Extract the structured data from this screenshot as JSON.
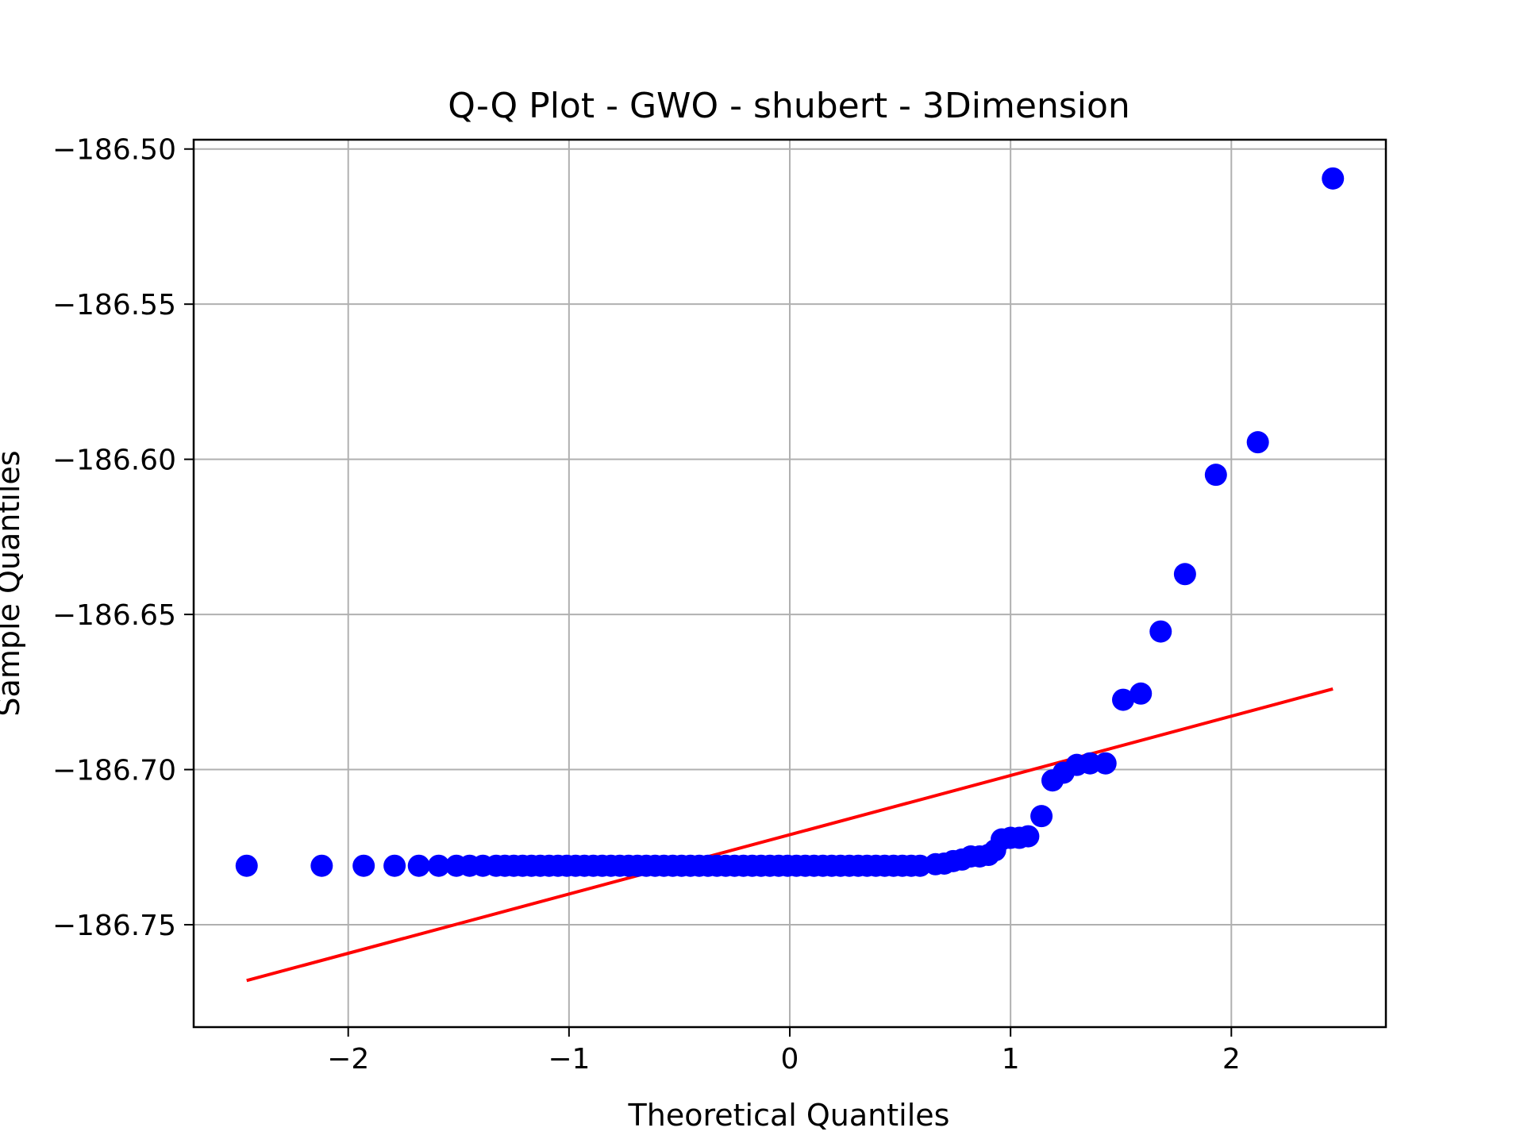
{
  "chart_data": {
    "type": "scatter",
    "title": "Q-Q Plot - GWO - shubert - 3Dimension",
    "xlabel": "Theoretical Quantiles",
    "ylabel": "Sample Quantiles",
    "xlim": [
      -2.7,
      2.7
    ],
    "ylim": [
      -186.783,
      -186.497
    ],
    "xticks": [
      -2,
      -1,
      0,
      1,
      2
    ],
    "xtick_labels": [
      "−2",
      "−1",
      "0",
      "1",
      "2"
    ],
    "yticks": [
      -186.75,
      -186.7,
      -186.65,
      -186.6,
      -186.55,
      -186.5
    ],
    "ytick_labels": [
      "−186.75",
      "−186.70",
      "−186.65",
      "−186.60",
      "−186.55",
      "−186.50"
    ],
    "grid": true,
    "points_color": "#0000ff",
    "line_color": "#ff0000",
    "low_tail_x": [
      -2.46,
      -2.12,
      -1.93,
      -1.79,
      -1.68,
      -1.59,
      -1.51,
      -1.45,
      -1.39
    ],
    "plateau": {
      "y": -186.731,
      "x_start": -1.33,
      "x_end": 0.62,
      "step": 0.04
    },
    "upper_points": [
      [
        0.66,
        -186.7305
      ],
      [
        0.7,
        -186.7303
      ],
      [
        0.74,
        -186.7295
      ],
      [
        0.78,
        -186.729
      ],
      [
        0.82,
        -186.728
      ],
      [
        0.86,
        -186.728
      ],
      [
        0.9,
        -186.7275
      ],
      [
        0.93,
        -186.726
      ],
      [
        0.96,
        -186.7225
      ],
      [
        1.0,
        -186.722
      ],
      [
        1.04,
        -186.722
      ],
      [
        1.08,
        -186.7215
      ],
      [
        1.14,
        -186.715
      ],
      [
        1.19,
        -186.7035
      ],
      [
        1.24,
        -186.701
      ],
      [
        1.3,
        -186.6985
      ],
      [
        1.36,
        -186.698
      ],
      [
        1.43,
        -186.698
      ],
      [
        1.51,
        -186.6775
      ],
      [
        1.59,
        -186.6755
      ],
      [
        1.68,
        -186.6555
      ],
      [
        1.79,
        -186.637
      ],
      [
        1.93,
        -186.605
      ],
      [
        2.12,
        -186.5945
      ],
      [
        2.46,
        -186.5095
      ]
    ],
    "fit_line": {
      "x": [
        -2.46,
        2.46
      ],
      "y": [
        -186.768,
        -186.674
      ]
    }
  }
}
